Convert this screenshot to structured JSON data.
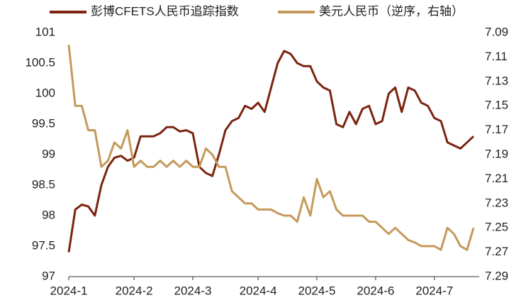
{
  "chart_data": {
    "type": "line",
    "categories": [
      "2024-1",
      null,
      null,
      null,
      null,
      null,
      null,
      null,
      null,
      null,
      "2024-2",
      null,
      null,
      null,
      null,
      null,
      null,
      null,
      null,
      "2024-3",
      null,
      null,
      null,
      null,
      null,
      null,
      null,
      null,
      null,
      "2024-4",
      null,
      null,
      null,
      null,
      null,
      null,
      null,
      null,
      "2024-5",
      null,
      null,
      null,
      null,
      null,
      null,
      null,
      null,
      "2024-6",
      null,
      null,
      null,
      null,
      null,
      null,
      null,
      null,
      "2024-7",
      null,
      null,
      null,
      null,
      null,
      null
    ],
    "series": [
      {
        "name": "彭博CFETS人民币追踪指数",
        "color": "#7b2410",
        "values": [
          97.4,
          98.1,
          98.18,
          98.15,
          98.0,
          98.5,
          98.8,
          98.95,
          98.98,
          98.9,
          98.95,
          99.3,
          99.3,
          99.3,
          99.35,
          99.45,
          99.45,
          99.38,
          99.4,
          99.35,
          98.8,
          98.7,
          98.65,
          99.0,
          99.4,
          99.55,
          99.6,
          99.8,
          99.75,
          99.85,
          99.7,
          100.1,
          100.5,
          100.7,
          100.65,
          100.5,
          100.45,
          100.45,
          100.2,
          100.1,
          100.05,
          99.5,
          99.45,
          99.7,
          99.5,
          99.75,
          99.8,
          99.5,
          99.55,
          100.0,
          100.1,
          99.7,
          100.1,
          100.05,
          99.85,
          99.8,
          99.6,
          99.55,
          99.2,
          99.15,
          99.1,
          99.2,
          99.3
        ]
      },
      {
        "name": "美元人民币（逆序，右轴）",
        "color": "#c49a5a",
        "axis": "y2",
        "values": [
          7.1,
          7.15,
          7.15,
          7.17,
          7.17,
          7.2,
          7.195,
          7.18,
          7.185,
          7.17,
          7.2,
          7.195,
          7.2,
          7.2,
          7.195,
          7.2,
          7.195,
          7.2,
          7.195,
          7.2,
          7.2,
          7.185,
          7.19,
          7.2,
          7.2,
          7.22,
          7.225,
          7.23,
          7.23,
          7.235,
          7.235,
          7.235,
          7.238,
          7.24,
          7.24,
          7.245,
          7.225,
          7.24,
          7.21,
          7.225,
          7.22,
          7.235,
          7.24,
          7.24,
          7.24,
          7.24,
          7.245,
          7.245,
          7.25,
          7.255,
          7.25,
          7.255,
          7.26,
          7.262,
          7.265,
          7.265,
          7.265,
          7.268,
          7.25,
          7.255,
          7.265,
          7.268,
          7.25
        ]
      }
    ],
    "ylim": [
      97,
      101
    ],
    "yticks": [
      97,
      97.5,
      98,
      98.5,
      99,
      99.5,
      100,
      100.5,
      101
    ],
    "y2lim": [
      7.29,
      7.09
    ],
    "y2ticks": [
      7.09,
      7.11,
      7.13,
      7.15,
      7.17,
      7.19,
      7.21,
      7.23,
      7.25,
      7.27,
      7.29
    ],
    "legend": "top",
    "grid": false
  }
}
